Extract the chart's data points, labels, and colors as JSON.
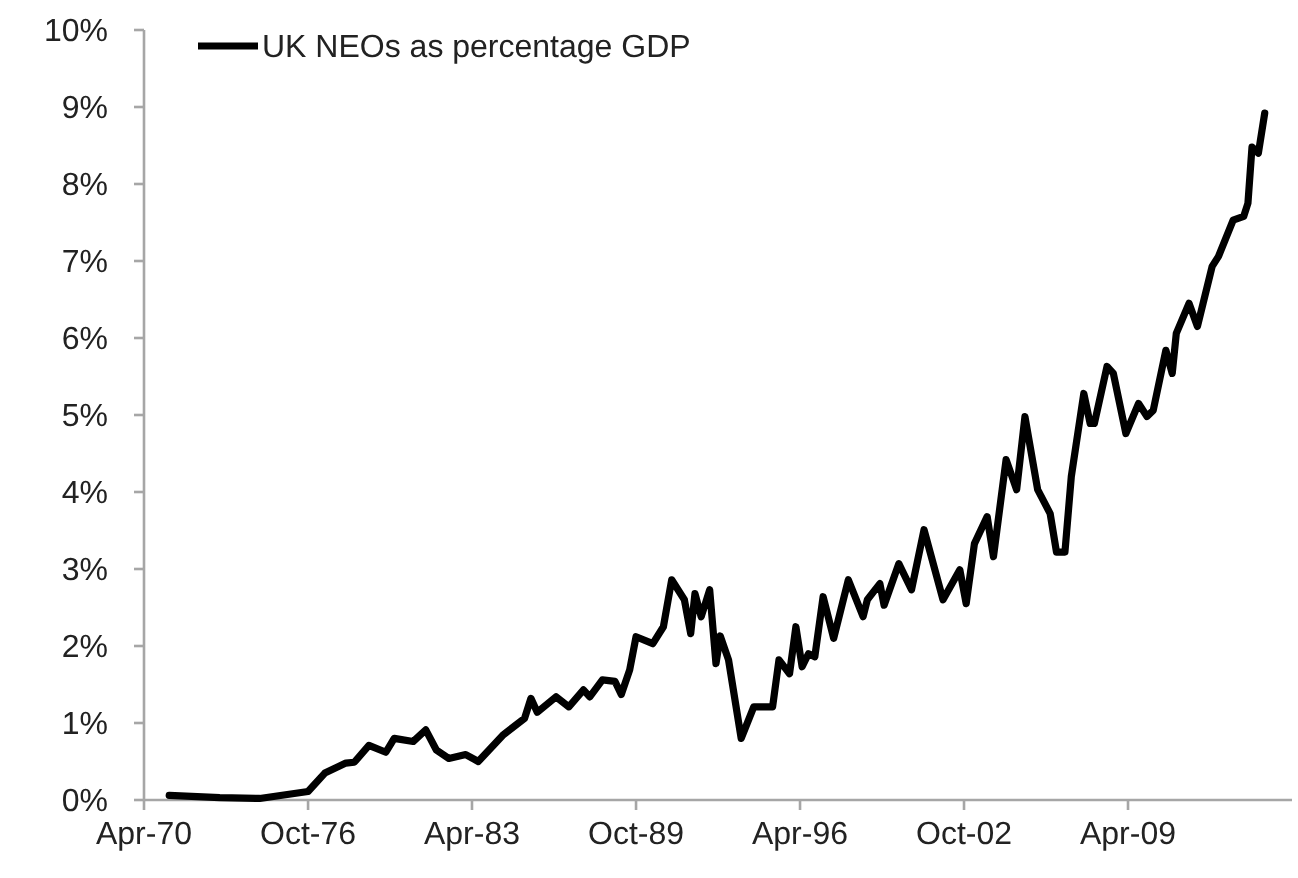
{
  "chart_data": {
    "type": "line",
    "legend": "top left",
    "line_style": "solid",
    "marker": "none",
    "grid": false,
    "xlim": [
      "1970-04",
      "2015-10"
    ],
    "xticks": [
      {
        "value": "1970-04",
        "label": "Apr-70"
      },
      {
        "value": "1976-10",
        "label": "Oct-76"
      },
      {
        "value": "1983-04",
        "label": "Apr-83"
      },
      {
        "value": "1989-10",
        "label": "Oct-89"
      },
      {
        "value": "1996-04",
        "label": "Apr-96"
      },
      {
        "value": "2002-10",
        "label": "Oct-02"
      },
      {
        "value": "2009-04",
        "label": "Apr-09"
      }
    ],
    "ylim": [
      0,
      10
    ],
    "yticks": [
      {
        "value": 0,
        "label": "0%"
      },
      {
        "value": 1,
        "label": "1%"
      },
      {
        "value": 2,
        "label": "2%"
      },
      {
        "value": 3,
        "label": "3%"
      },
      {
        "value": 4,
        "label": "4%"
      },
      {
        "value": 5,
        "label": "5%"
      },
      {
        "value": 6,
        "label": "6%"
      },
      {
        "value": 7,
        "label": "7%"
      },
      {
        "value": 8,
        "label": "8%"
      },
      {
        "value": 9,
        "label": "9%"
      },
      {
        "value": 10,
        "label": "10%"
      }
    ],
    "x": [
      "1971-04",
      "1973-04",
      "1974-11",
      "1976-10",
      "1977-06",
      "1978-04",
      "1978-08",
      "1979-03",
      "1979-11",
      "1980-03",
      "1980-12",
      "1981-06",
      "1981-11",
      "1982-05",
      "1983-01",
      "1983-07",
      "1984-07",
      "1985-05",
      "1985-08",
      "1985-11",
      "1986-08",
      "1987-02",
      "1987-09",
      "1987-12",
      "1988-06",
      "1988-12",
      "1989-03",
      "1989-07",
      "1989-10",
      "1990-06",
      "1990-11",
      "1991-03",
      "1991-09",
      "1991-12",
      "1992-02",
      "1992-05",
      "1992-09",
      "1992-12",
      "1993-02",
      "1993-06",
      "1993-12",
      "1994-06",
      "1995-03",
      "1995-06",
      "1995-11",
      "1996-02",
      "1996-05",
      "1996-08",
      "1996-11",
      "1997-03",
      "1997-08",
      "1998-03",
      "1998-10",
      "1998-12",
      "1999-06",
      "1999-08",
      "2000-03",
      "2000-09",
      "2001-03",
      "2001-12",
      "2002-08",
      "2002-11",
      "2003-03",
      "2003-09",
      "2003-12",
      "2004-06",
      "2004-11",
      "2005-03",
      "2005-09",
      "2006-03",
      "2006-06",
      "2006-10",
      "2007-01",
      "2007-07",
      "2007-10",
      "2007-12",
      "2008-06",
      "2008-09",
      "2009-03",
      "2009-09",
      "2010-01",
      "2010-04",
      "2010-10",
      "2011-01",
      "2011-03",
      "2011-09",
      "2012-01",
      "2012-08",
      "2012-11",
      "2013-06",
      "2013-11",
      "2014-01",
      "2014-03",
      "2014-06",
      "2014-09"
    ],
    "series": [
      {
        "name": "UK NEOs as percentage GDP",
        "color": "#000000",
        "values": [
          0.06,
          0.03,
          0.02,
          0.11,
          0.35,
          0.48,
          0.49,
          0.71,
          0.62,
          0.8,
          0.76,
          0.91,
          0.65,
          0.54,
          0.59,
          0.5,
          0.85,
          1.06,
          1.32,
          1.14,
          1.34,
          1.21,
          1.43,
          1.34,
          1.56,
          1.54,
          1.37,
          1.69,
          2.12,
          2.03,
          2.25,
          2.86,
          2.6,
          2.16,
          2.68,
          2.38,
          2.73,
          1.77,
          2.13,
          1.82,
          0.8,
          1.21,
          1.21,
          1.82,
          1.64,
          2.25,
          1.73,
          1.9,
          1.86,
          2.64,
          2.1,
          2.86,
          2.38,
          2.6,
          2.81,
          2.53,
          3.07,
          2.73,
          3.51,
          2.6,
          2.99,
          2.55,
          3.33,
          3.68,
          3.16,
          4.42,
          4.03,
          4.98,
          4.03,
          3.72,
          3.22,
          3.22,
          4.2,
          5.28,
          4.89,
          4.89,
          5.63,
          5.54,
          4.76,
          5.15,
          4.98,
          5.06,
          5.84,
          5.54,
          6.06,
          6.45,
          6.15,
          6.93,
          7.06,
          7.53,
          7.58,
          7.75,
          8.48,
          8.4,
          8.92
        ]
      }
    ]
  }
}
